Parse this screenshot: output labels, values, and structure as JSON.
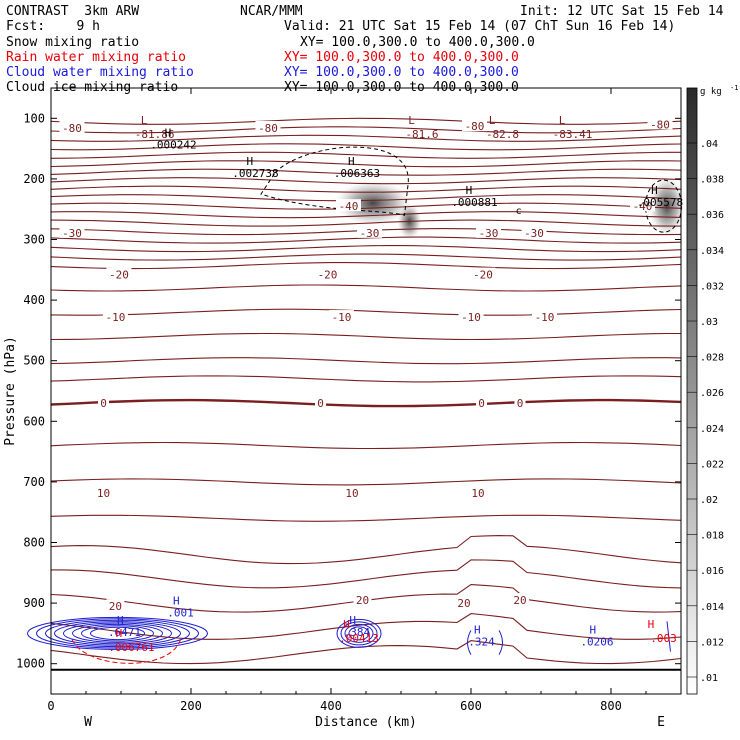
{
  "header": {
    "model": "CONTRAST  3km ARW",
    "org": "NCAR/MMM",
    "init": "Init: 12 UTC Sat 15 Feb 14",
    "fcst": "Fcst:    9 h",
    "valid": "Valid: 21 UTC Sat 15 Feb 14 (07 ChT Sun 16 Feb 14)"
  },
  "legend": [
    {
      "label": "Snow mixing ratio",
      "xy": "XY= 100.0,300.0 to 400.0,300.0",
      "color": "#000000"
    },
    {
      "label": "Rain water mixing ratio",
      "xy": "XY= 100.0,300.0 to 400.0,300.0",
      "color": "#e8000b"
    },
    {
      "label": "Cloud water mixing ratio",
      "xy": "XY= 100.0,300.0 to 400.0,300.0",
      "color": "#1a1adc"
    },
    {
      "label": "Cloud ice mixing ratio",
      "xy": "XY= 100.0,300.0 to 400.0,300.0",
      "color": "#000000"
    }
  ],
  "chart_data": {
    "type": "contour",
    "xlabel": "Distance (km)",
    "ylabel": "Pressure (hPa)",
    "xlim": [
      0,
      900
    ],
    "ylim": [
      1050,
      50
    ],
    "x_ticks": [
      0,
      200,
      400,
      600,
      800
    ],
    "y_ticks": [
      100,
      200,
      300,
      400,
      500,
      600,
      700,
      800,
      900,
      1000
    ],
    "x_end_labels": {
      "left": "W",
      "right": "E"
    },
    "colorbar": {
      "unit": "g kg",
      "unit_exp": "-1",
      "ticks": [
        ".04",
        ".038",
        ".036",
        ".034",
        ".032",
        ".03",
        ".028",
        ".026",
        ".024",
        ".022",
        ".02",
        ".018",
        ".016",
        ".014",
        ".012",
        ".01"
      ]
    },
    "temperature_labels": [
      {
        "text": "-80",
        "x": 30,
        "p": 116
      },
      {
        "text": "-80",
        "x": 310,
        "p": 116
      },
      {
        "text": "-80",
        "x": 605,
        "p": 113
      },
      {
        "text": "-80",
        "x": 870,
        "p": 110
      },
      {
        "text": "-30",
        "x": 30,
        "p": 289
      },
      {
        "text": "-30",
        "x": 455,
        "p": 289
      },
      {
        "text": "-30",
        "x": 625,
        "p": 289
      },
      {
        "text": "-30",
        "x": 690,
        "p": 289
      },
      {
        "text": "-20",
        "x": 97,
        "p": 358
      },
      {
        "text": "-20",
        "x": 395,
        "p": 358
      },
      {
        "text": "-20",
        "x": 617,
        "p": 358
      },
      {
        "text": "-10",
        "x": 92,
        "p": 428
      },
      {
        "text": "-10",
        "x": 415,
        "p": 428
      },
      {
        "text": "-10",
        "x": 600,
        "p": 428
      },
      {
        "text": "-10",
        "x": 705,
        "p": 428
      },
      {
        "text": "0",
        "x": 75,
        "p": 570
      },
      {
        "text": "0",
        "x": 385,
        "p": 570
      },
      {
        "text": "0",
        "x": 615,
        "p": 570
      },
      {
        "text": "0",
        "x": 670,
        "p": 570
      },
      {
        "text": "10",
        "x": 75,
        "p": 718
      },
      {
        "text": "10",
        "x": 430,
        "p": 718
      },
      {
        "text": "10",
        "x": 610,
        "p": 718
      },
      {
        "text": "20",
        "x": 92,
        "p": 905
      },
      {
        "text": "20",
        "x": 445,
        "p": 895
      },
      {
        "text": "20",
        "x": 590,
        "p": 900
      },
      {
        "text": "20",
        "x": 670,
        "p": 895
      },
      {
        "text": "-40",
        "x": 425,
        "p": 245
      },
      {
        "text": "-40",
        "x": 845,
        "p": 245
      }
    ],
    "low_labels": [
      {
        "text": "-81.86",
        "x": 148,
        "p": 123
      },
      {
        "text": "-81.6",
        "x": 530,
        "p": 123
      },
      {
        "text": "-82.8",
        "x": 645,
        "p": 123
      },
      {
        "text": "-83.41",
        "x": 745,
        "p": 123
      }
    ],
    "high_labels_black": [
      {
        "text": ".000242",
        "x": 175,
        "p": 150
      },
      {
        "text": ".002738",
        "x": 292,
        "p": 197
      },
      {
        "text": ".006363",
        "x": 437,
        "p": 197
      },
      {
        "text": ".000881",
        "x": 605,
        "p": 245
      },
      {
        "text": ".005578",
        "x": 870,
        "p": 245
      }
    ],
    "high_labels_blue": [
      {
        "text": ".001",
        "x": 185,
        "p": 922
      },
      {
        "text": ".6471",
        "x": 105,
        "p": 954
      },
      {
        "text": ".384",
        "x": 437,
        "p": 954
      },
      {
        "text": ".324",
        "x": 615,
        "p": 970
      },
      {
        "text": ".0206",
        "x": 780,
        "p": 970
      }
    ],
    "high_labels_red": [
      {
        "text": ".006761",
        "x": 115,
        "p": 969
      },
      {
        "text": ".00413",
        "x": 440,
        "p": 954
      },
      {
        "text": ".003",
        "x": 875,
        "p": 954
      }
    ],
    "contour_minor": [
      "c"
    ],
    "ground_p": 1010
  }
}
